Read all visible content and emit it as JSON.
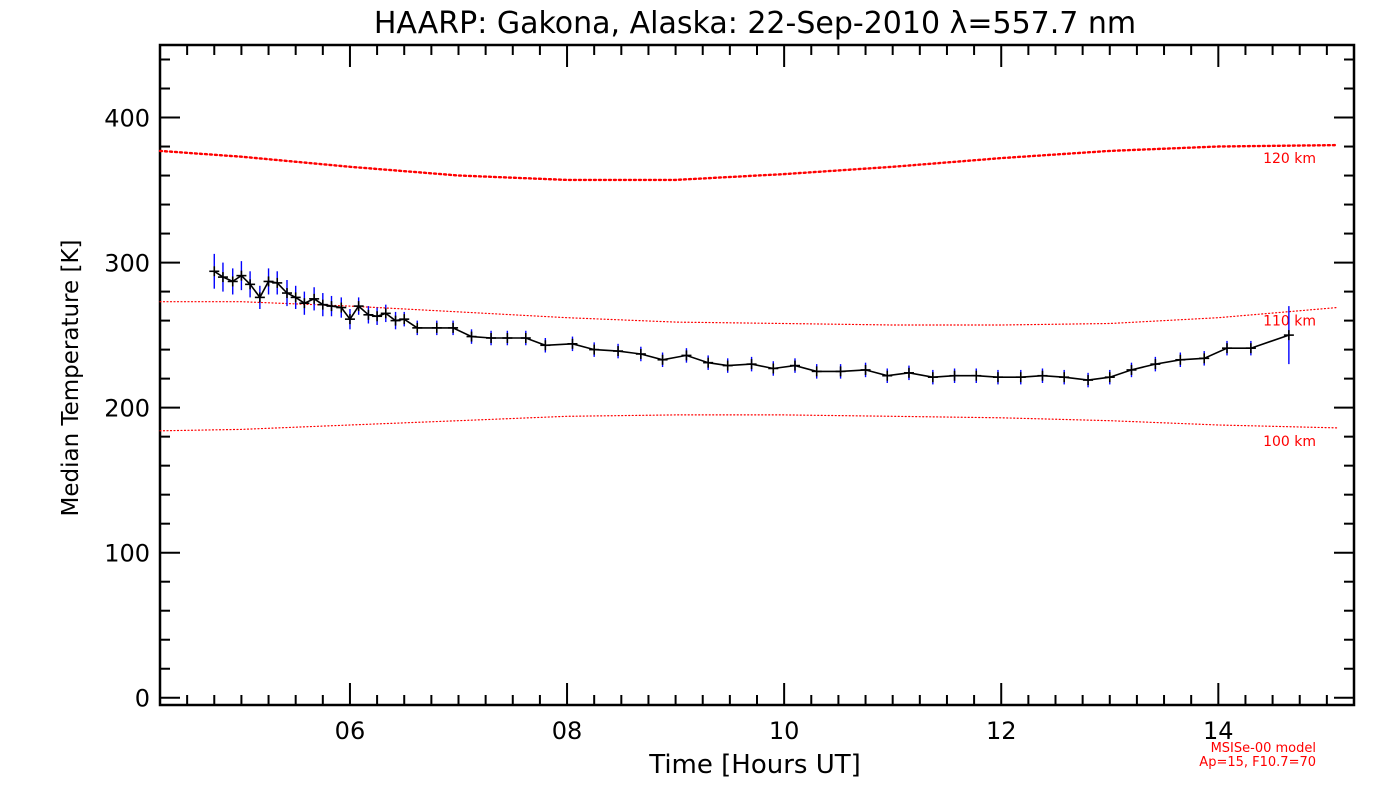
{
  "chart_data": {
    "type": "line",
    "title": "HAARP: Gakona,  Alaska: 22-Sep-2010 λ=557.7 nm",
    "xlabel": "Time [Hours UT]",
    "ylabel": "Median Temperature [K]",
    "xlim": [
      4.25,
      15.25
    ],
    "ylim": [
      -5,
      450
    ],
    "x_ticks": [
      6,
      8,
      10,
      12,
      14
    ],
    "x_tick_labels": [
      "06",
      "08",
      "10",
      "12",
      "14"
    ],
    "y_ticks": [
      0,
      100,
      200,
      300,
      400
    ],
    "y_tick_labels": [
      "0",
      "100",
      "200",
      "300",
      "400"
    ],
    "grid": false,
    "colors": {
      "data_line": "#000000",
      "markers": "#000000",
      "error_bars": "#0000ff",
      "model": "#ff0000"
    },
    "series": [
      {
        "name": "",
        "x": [
          4.75,
          4.83,
          4.92,
          5.0,
          5.08,
          5.17,
          5.25,
          5.33,
          5.42,
          5.5,
          5.58,
          5.67,
          5.75,
          5.83,
          5.92,
          6.0,
          6.08,
          6.17,
          6.25,
          6.33,
          6.42,
          6.5,
          6.62,
          6.8,
          6.95,
          7.12,
          7.3,
          7.45,
          7.62,
          7.8,
          8.05,
          8.25,
          8.47,
          8.68,
          8.88,
          9.1,
          9.3,
          9.48,
          9.7,
          9.9,
          10.1,
          10.3,
          10.52,
          10.75,
          10.95,
          11.15,
          11.37,
          11.57,
          11.77,
          11.97,
          12.18,
          12.38,
          12.58,
          12.8,
          13.0,
          13.2,
          13.42,
          13.65,
          13.87,
          14.08,
          14.3,
          14.65
        ],
        "y": [
          294,
          290,
          287,
          291,
          285,
          276,
          287,
          286,
          279,
          276,
          272,
          275,
          271,
          270,
          269,
          261,
          270,
          264,
          263,
          265,
          260,
          261,
          255,
          255,
          255,
          249,
          248,
          248,
          248,
          243,
          244,
          240,
          239,
          237,
          233,
          236,
          231,
          229,
          230,
          227,
          229,
          225,
          225,
          226,
          222,
          224,
          221,
          222,
          222,
          221,
          221,
          222,
          221,
          219,
          221,
          226,
          230,
          233,
          234,
          241,
          241,
          250
        ],
        "err": [
          12,
          10,
          9,
          10,
          9,
          8,
          9,
          8,
          9,
          8,
          8,
          8,
          8,
          7,
          7,
          7,
          6,
          6,
          6,
          6,
          6,
          5,
          5,
          5,
          5,
          5,
          5,
          5,
          5,
          5,
          5,
          5,
          5,
          5,
          5,
          5,
          5,
          5,
          5,
          5,
          5,
          5,
          5,
          5,
          5,
          5,
          5,
          5,
          5,
          5,
          5,
          5,
          5,
          5,
          5,
          5,
          5,
          5,
          5,
          5,
          5,
          20
        ]
      }
    ],
    "model_curves": [
      {
        "label": "120 km",
        "style": "dotted",
        "x": [
          4.25,
          5.0,
          6.0,
          7.0,
          8.0,
          9.0,
          10.0,
          11.0,
          12.0,
          13.0,
          14.0,
          15.1
        ],
        "y": [
          377,
          373,
          366,
          360,
          357,
          357,
          361,
          366,
          372,
          377,
          380,
          381
        ]
      },
      {
        "label": "110 km",
        "style": "dotted",
        "x": [
          4.25,
          5.0,
          6.0,
          7.0,
          8.0,
          9.0,
          10.0,
          11.0,
          12.0,
          13.0,
          14.0,
          15.1
        ],
        "y": [
          273,
          273,
          270,
          266,
          262,
          259,
          258,
          257,
          257,
          258,
          262,
          269
        ]
      },
      {
        "label": "100 km",
        "style": "dotted",
        "x": [
          4.25,
          5.0,
          6.0,
          7.0,
          8.0,
          9.0,
          10.0,
          11.0,
          12.0,
          13.0,
          14.0,
          15.1
        ],
        "y": [
          184,
          185,
          188,
          191,
          194,
          195,
          195,
          194,
          193,
          191,
          188,
          186
        ]
      }
    ],
    "annotations": [
      "MSISe-00 model",
      "Ap=15, F10.7=70"
    ]
  }
}
